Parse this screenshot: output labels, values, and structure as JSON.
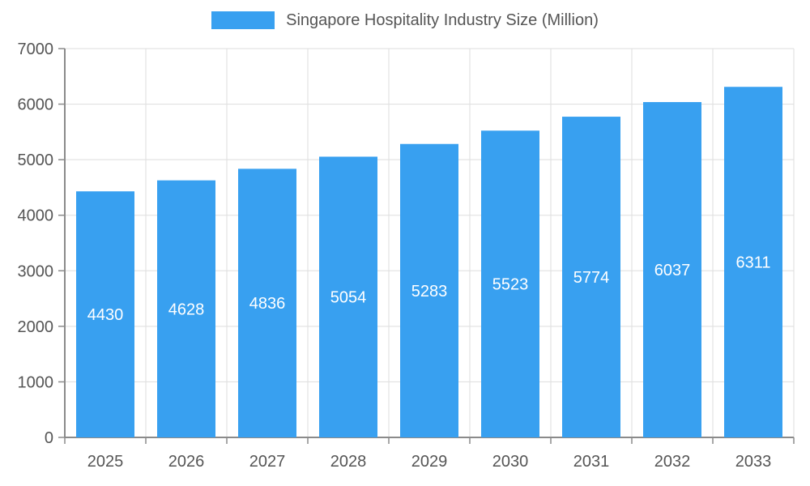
{
  "chart_data": {
    "type": "bar",
    "title": "Singapore Hospitality Industry Size (Million)",
    "categories": [
      "2025",
      "2026",
      "2027",
      "2028",
      "2029",
      "2030",
      "2031",
      "2032",
      "2033"
    ],
    "values": [
      4430,
      4628,
      4836,
      5054,
      5283,
      5523,
      5774,
      6037,
      6311
    ],
    "xlabel": "",
    "ylabel": "",
    "ylim": [
      0,
      7000
    ],
    "yticks": [
      0,
      1000,
      2000,
      3000,
      4000,
      5000,
      6000,
      7000
    ],
    "grid": true,
    "legend_position": "top",
    "bar_color": "#38A0F0",
    "value_label_color": "#ffffff",
    "axis_text_color": "#555555",
    "grid_color": "#dddddd",
    "axis_line_color": "#8a8a8a"
  }
}
